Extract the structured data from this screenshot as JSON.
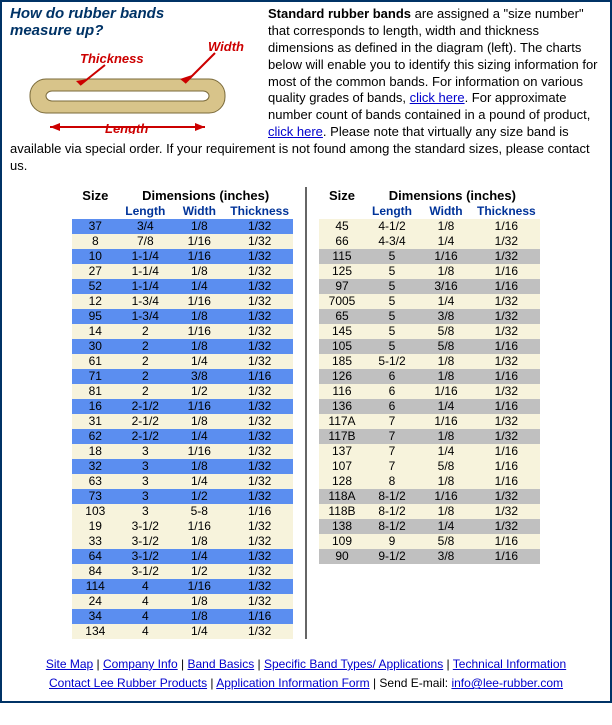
{
  "diagram": {
    "title_line1": "How do rubber bands",
    "title_line2": "measure up?",
    "label_width": "Width",
    "label_thickness": "Thickness",
    "label_length": "Length",
    "band_color": "#d8c48a",
    "arrow_color": "#cc0000"
  },
  "intro": {
    "bold": "Standard rubber bands",
    "t1": " are assigned a \"size number\" that corresponds to length, width and thickness dimensions as defined in the diagram (left).   The charts below will enable you to identify this sizing information for most of the common bands.  For information on various quality grades of bands, ",
    "link1": "click here",
    "t2": ".  For approximate number count of bands contained in a pound of product, ",
    "link2": "click here",
    "t3": ".  Please note that virtually any size band is available via special order.  If your requirement is not found among the standard sizes, please contact us."
  },
  "headers": {
    "size": "Size",
    "dims": "Dimensions (inches)",
    "length": "Length",
    "width": "Width",
    "thickness": "Thickness"
  },
  "colors": {
    "blue": "#5b8ef0",
    "cream": "#f7f3dc",
    "grey": "#c0c0c0"
  },
  "left": [
    {
      "s": "37",
      "l": "3/4",
      "w": "1/8",
      "t": "1/32",
      "c": "blue"
    },
    {
      "s": "8",
      "l": "7/8",
      "w": "1/16",
      "t": "1/32",
      "c": "cream"
    },
    {
      "s": "10",
      "l": "1-1/4",
      "w": "1/16",
      "t": "1/32",
      "c": "blue"
    },
    {
      "s": "27",
      "l": "1-1/4",
      "w": "1/8",
      "t": "1/32",
      "c": "cream"
    },
    {
      "s": "52",
      "l": "1-1/4",
      "w": "1/4",
      "t": "1/32",
      "c": "blue"
    },
    {
      "s": "12",
      "l": "1-3/4",
      "w": "1/16",
      "t": "1/32",
      "c": "cream"
    },
    {
      "s": "95",
      "l": "1-3/4",
      "w": "1/8",
      "t": "1/32",
      "c": "blue"
    },
    {
      "s": "14",
      "l": "2",
      "w": "1/16",
      "t": "1/32",
      "c": "cream"
    },
    {
      "s": "30",
      "l": "2",
      "w": "1/8",
      "t": "1/32",
      "c": "blue"
    },
    {
      "s": "61",
      "l": "2",
      "w": "1/4",
      "t": "1/32",
      "c": "cream"
    },
    {
      "s": "71",
      "l": "2",
      "w": "3/8",
      "t": "1/16",
      "c": "blue"
    },
    {
      "s": "81",
      "l": "2",
      "w": "1/2",
      "t": "1/32",
      "c": "cream"
    },
    {
      "s": "16",
      "l": "2-1/2",
      "w": "1/16",
      "t": "1/32",
      "c": "blue"
    },
    {
      "s": "31",
      "l": "2-1/2",
      "w": "1/8",
      "t": "1/32",
      "c": "cream"
    },
    {
      "s": "62",
      "l": "2-1/2",
      "w": "1/4",
      "t": "1/32",
      "c": "blue"
    },
    {
      "s": "18",
      "l": "3",
      "w": "1/16",
      "t": "1/32",
      "c": "cream"
    },
    {
      "s": "32",
      "l": "3",
      "w": "1/8",
      "t": "1/32",
      "c": "blue"
    },
    {
      "s": "63",
      "l": "3",
      "w": "1/4",
      "t": "1/32",
      "c": "cream"
    },
    {
      "s": "73",
      "l": "3",
      "w": "1/2",
      "t": "1/32",
      "c": "blue"
    },
    {
      "s": "103",
      "l": "3",
      "w": "5-8",
      "t": "1/16",
      "c": "cream"
    },
    {
      "s": "19",
      "l": "3-1/2",
      "w": "1/16",
      "t": "1/32",
      "c": "cream"
    },
    {
      "s": "33",
      "l": "3-1/2",
      "w": "1/8",
      "t": "1/32",
      "c": "cream"
    },
    {
      "s": "64",
      "l": "3-1/2",
      "w": "1/4",
      "t": "1/32",
      "c": "blue"
    },
    {
      "s": "84",
      "l": "3-1/2",
      "w": "1/2",
      "t": "1/32",
      "c": "cream"
    },
    {
      "s": "114",
      "l": "4",
      "w": "1/16",
      "t": "1/32",
      "c": "blue"
    },
    {
      "s": "24",
      "l": "4",
      "w": "1/8",
      "t": "1/32",
      "c": "cream"
    },
    {
      "s": "34",
      "l": "4",
      "w": "1/8",
      "t": "1/16",
      "c": "blue"
    },
    {
      "s": "134",
      "l": "4",
      "w": "1/4",
      "t": "1/32",
      "c": "cream"
    }
  ],
  "right": [
    {
      "s": "45",
      "l": "4-1/2",
      "w": "1/8",
      "t": "1/16",
      "c": "cream"
    },
    {
      "s": "66",
      "l": "4-3/4",
      "w": "1/4",
      "t": "1/32",
      "c": "cream"
    },
    {
      "s": "115",
      "l": "5",
      "w": "1/16",
      "t": "1/32",
      "c": "grey"
    },
    {
      "s": "125",
      "l": "5",
      "w": "1/8",
      "t": "1/16",
      "c": "cream"
    },
    {
      "s": "97",
      "l": "5",
      "w": "3/16",
      "t": "1/16",
      "c": "grey"
    },
    {
      "s": "7005",
      "l": "5",
      "w": "1/4",
      "t": "1/32",
      "c": "cream"
    },
    {
      "s": "65",
      "l": "5",
      "w": "3/8",
      "t": "1/32",
      "c": "grey"
    },
    {
      "s": "145",
      "l": "5",
      "w": "5/8",
      "t": "1/32",
      "c": "cream"
    },
    {
      "s": "105",
      "l": "5",
      "w": "5/8",
      "t": "1/16",
      "c": "grey"
    },
    {
      "s": "185",
      "l": "5-1/2",
      "w": "1/8",
      "t": "1/32",
      "c": "cream"
    },
    {
      "s": "126",
      "l": "6",
      "w": "1/8",
      "t": "1/16",
      "c": "grey"
    },
    {
      "s": "116",
      "l": "6",
      "w": "1/16",
      "t": "1/32",
      "c": "cream"
    },
    {
      "s": "136",
      "l": "6",
      "w": "1/4",
      "t": "1/16",
      "c": "grey"
    },
    {
      "s": "117A",
      "l": "7",
      "w": "1/16",
      "t": "1/32",
      "c": "cream"
    },
    {
      "s": "117B",
      "l": "7",
      "w": "1/8",
      "t": "1/32",
      "c": "grey"
    },
    {
      "s": "137",
      "l": "7",
      "w": "1/4",
      "t": "1/16",
      "c": "cream"
    },
    {
      "s": "107",
      "l": "7",
      "w": "5/8",
      "t": "1/16",
      "c": "cream"
    },
    {
      "s": "128",
      "l": "8",
      "w": "1/8",
      "t": "1/16",
      "c": "cream"
    },
    {
      "s": "118A",
      "l": "8-1/2",
      "w": "1/16",
      "t": "1/32",
      "c": "grey"
    },
    {
      "s": "118B",
      "l": "8-1/2",
      "w": "1/8",
      "t": "1/32",
      "c": "cream"
    },
    {
      "s": "138",
      "l": "8-1/2",
      "w": "1/4",
      "t": "1/32",
      "c": "grey"
    },
    {
      "s": "109",
      "l": "9",
      "w": "5/8",
      "t": "1/16",
      "c": "cream"
    },
    {
      "s": "90",
      "l": "9-1/2",
      "w": "3/8",
      "t": "1/16",
      "c": "grey"
    }
  ],
  "footer": {
    "links": [
      "Site Map",
      "Company Info",
      "Band Basics",
      "Specific Band Types/ Applications",
      "Technical Information",
      "Contact Lee Rubber Products",
      "Application Information Form"
    ],
    "send": "Send E-mail:  ",
    "email": "info@lee-rubber.com"
  }
}
